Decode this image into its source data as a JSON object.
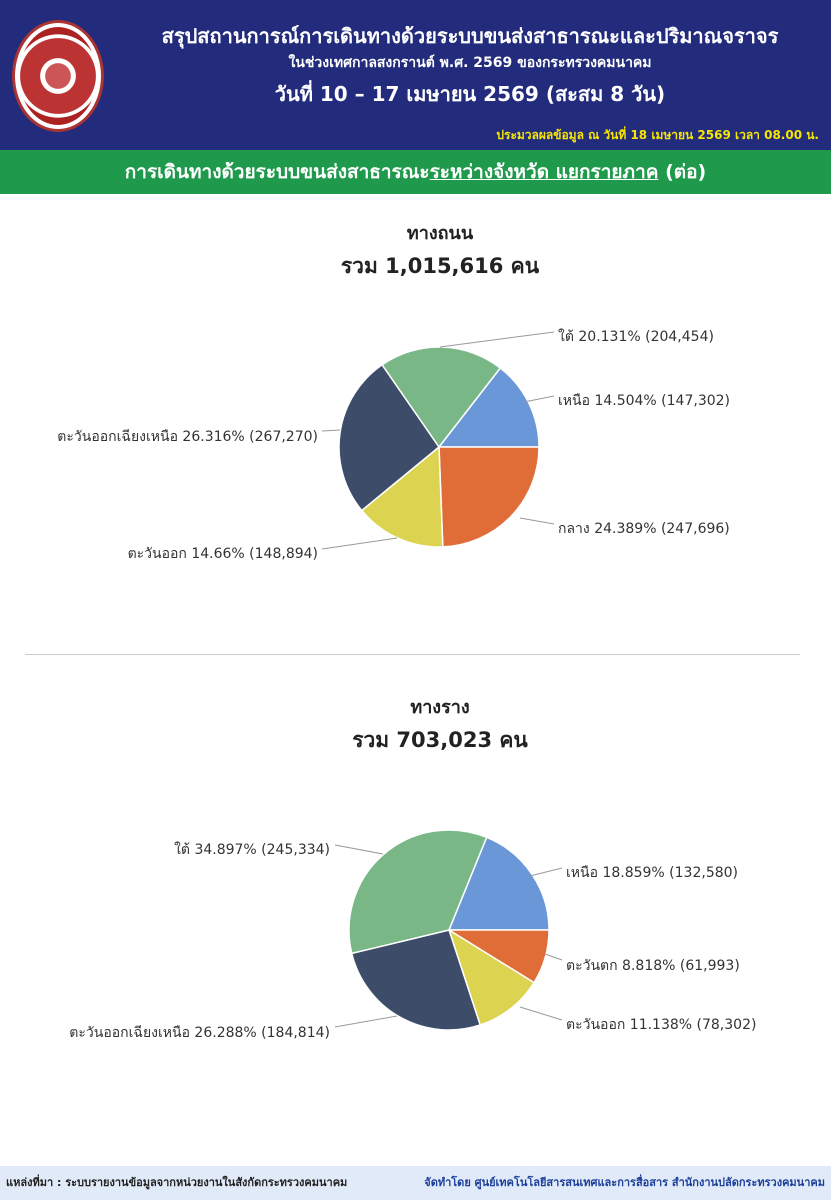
{
  "header": {
    "title": "สรุปสถานการณ์การเดินทางด้วยระบบขนส่งสาธารณะและปริมาณจราจร",
    "subtitle": "ในช่วงเทศกาลสงกรานต์ พ.ศ. 2569 ของกระทรวงคมนาคม",
    "dates": "วันที่  10 – 17 เมษายน 2569 (สะสม 8 วัน)",
    "processed": "ประมวลผลข้อมูล ณ วันที่ 18 เมษายน 2569 เวลา 08.00 น.",
    "logo_text": "กระทรวงคมนาคม"
  },
  "band": {
    "prefix": "การเดินทางด้วยระบบขนส่งสาธารณะ",
    "underlined": "ระหว่างจังหวัด แยกรายภาค",
    "suffix": " (ต่อ)"
  },
  "chart_data": [
    {
      "type": "pie",
      "title": "ทางถนน",
      "total_label": "รวม 1,015,616 คน",
      "slices": [
        {
          "name": "เหนือ",
          "percent": 14.504,
          "value": 147302,
          "label": "เหนือ 14.504% (147,302)",
          "color": "#6a97d8"
        },
        {
          "name": "กลาง",
          "percent": 24.389,
          "value": 247696,
          "label": "กลาง 24.389% (247,696)",
          "color": "#e06c37"
        },
        {
          "name": "ตะวันออก",
          "percent": 14.66,
          "value": 148894,
          "label": "ตะวันออก 14.66% (148,894)",
          "color": "#dcd350"
        },
        {
          "name": "ตะวันออกเฉียงเหนือ",
          "percent": 26.316,
          "value": 267270,
          "label": "ตะวันออกเฉียงเหนือ 26.316% (267,270)",
          "color": "#3d4c69"
        },
        {
          "name": "ใต้",
          "percent": 20.131,
          "value": 204454,
          "label": "ใต้ 20.131% (204,454)",
          "color": "#79b886"
        }
      ]
    },
    {
      "type": "pie",
      "title": "ทางราง",
      "total_label": "รวม 703,023 คน",
      "slices": [
        {
          "name": "เหนือ",
          "percent": 18.859,
          "value": 132580,
          "label": "เหนือ 18.859% (132,580)",
          "color": "#6a97d8"
        },
        {
          "name": "ตะวันตก",
          "percent": 8.818,
          "value": 61993,
          "label": "ตะวันตก 8.818% (61,993)",
          "color": "#e06c37"
        },
        {
          "name": "ตะวันออก",
          "percent": 11.138,
          "value": 78302,
          "label": "ตะวันออก 11.138% (78,302)",
          "color": "#dcd350"
        },
        {
          "name": "ตะวันออกเฉียงเหนือ",
          "percent": 26.288,
          "value": 184814,
          "label": "ตะวันออกเฉียงเหนือ 26.288% (184,814)",
          "color": "#3d4c69"
        },
        {
          "name": "ใต้",
          "percent": 34.897,
          "value": 245334,
          "label": "ใต้ 34.897% (245,334)",
          "color": "#79b886"
        }
      ]
    }
  ],
  "footer": {
    "source": "แหล่งที่มา : ระบบรายงานข้อมูลจากหน่วยงานในสังกัดกระทรวงคมนาคม",
    "by": "จัดทำโดย ศูนย์เทคโนโลยีสารสนเทศและการสื่อสาร สำนักงานปลัดกระทรวงคมนาคม"
  }
}
